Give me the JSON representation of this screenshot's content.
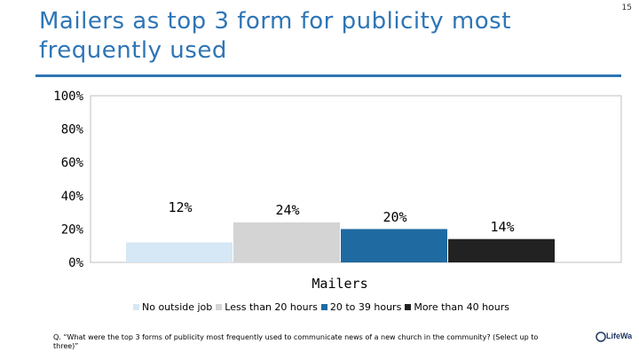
{
  "slide": {
    "title": "Mailers as top 3 form for publicity most frequently used",
    "page_number": "15",
    "footnote": "Q. “What were the top 3 forms of publicity most frequently used to communicate news of a new church in the community? (Select up to three)”",
    "logo_text": "LifeWay RESEARCH"
  },
  "chart_data": {
    "type": "bar",
    "title": "",
    "categories": [
      "Mailers"
    ],
    "series": [
      {
        "name": "No outside job",
        "values": [
          12
        ],
        "label": "12%",
        "color": "#d6e7f5"
      },
      {
        "name": "Less than 20 hours",
        "values": [
          24
        ],
        "label": "24%",
        "color": "#d4d4d4"
      },
      {
        "name": "20 to 39 hours",
        "values": [
          20
        ],
        "label": "20%",
        "color": "#1f6aa1"
      },
      {
        "name": "More than 40 hours",
        "values": [
          14
        ],
        "label": "14%",
        "color": "#222222"
      }
    ],
    "xlabel": "",
    "ylabel": "",
    "ylim": [
      0,
      100
    ],
    "yticks": [
      "0%",
      "20%",
      "40%",
      "60%",
      "80%",
      "100%"
    ],
    "legend_placement": "bottom",
    "grid": false
  }
}
